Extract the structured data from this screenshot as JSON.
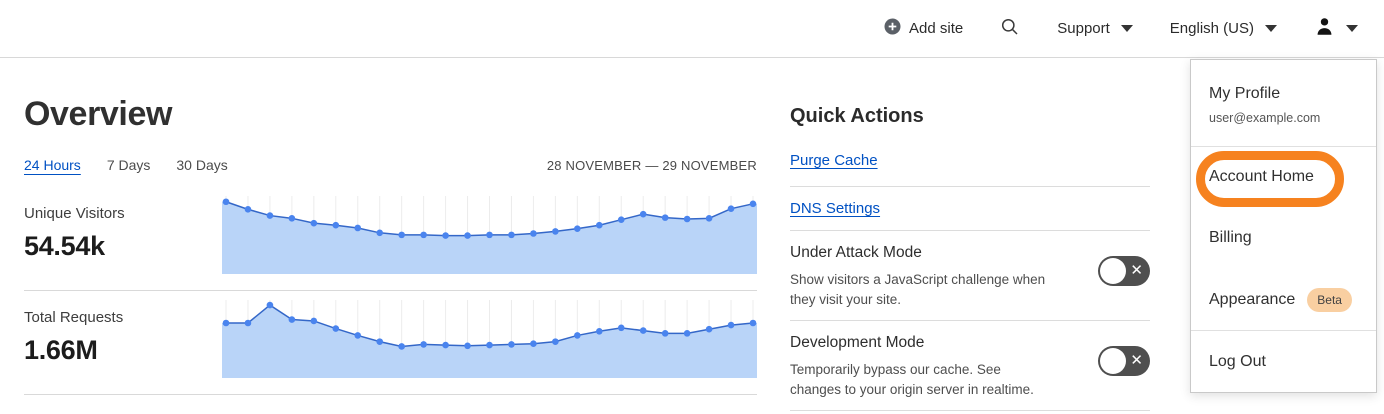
{
  "topbar": {
    "add_site_label": "Add site",
    "support_label": "Support",
    "language_label": "English (US)"
  },
  "overview": {
    "title": "Overview",
    "tabs": [
      {
        "label": "24 Hours",
        "active": true
      },
      {
        "label": "7 Days",
        "active": false
      },
      {
        "label": "30 Days",
        "active": false
      }
    ],
    "date_range": "28 NOVEMBER — 29 NOVEMBER",
    "metrics": [
      {
        "label": "Unique Visitors",
        "value": "54.54k"
      },
      {
        "label": "Total Requests",
        "value": "1.66M"
      }
    ]
  },
  "chart_data": [
    {
      "type": "area",
      "title": "Unique Visitors",
      "total_shown": "54.54k",
      "x_axis": "time across 24 hours, 28 November — 29 November (no tick labels shown)",
      "y_axis": "unlabeled; values are relative heights 0-1 read from the plot",
      "grid": "light vertical gridline at each data point",
      "legend": "none",
      "values": [
        0.96,
        0.85,
        0.76,
        0.72,
        0.65,
        0.62,
        0.58,
        0.51,
        0.48,
        0.48,
        0.47,
        0.47,
        0.48,
        0.48,
        0.5,
        0.53,
        0.57,
        0.62,
        0.7,
        0.78,
        0.73,
        0.71,
        0.72,
        0.86,
        0.93
      ]
    },
    {
      "type": "area",
      "title": "Total Requests",
      "total_shown": "1.66M",
      "x_axis": "time across 24 hours, 28 November — 29 November (no tick labels shown)",
      "y_axis": "unlabeled; values are relative heights 0-1 read from the plot",
      "grid": "light vertical gridline at each data point",
      "legend": "none",
      "values": [
        0.71,
        0.71,
        0.97,
        0.76,
        0.74,
        0.63,
        0.53,
        0.44,
        0.37,
        0.4,
        0.39,
        0.38,
        0.39,
        0.4,
        0.41,
        0.44,
        0.53,
        0.59,
        0.64,
        0.6,
        0.56,
        0.56,
        0.62,
        0.68,
        0.71
      ]
    }
  ],
  "quick_actions": {
    "title": "Quick Actions",
    "links": [
      {
        "label": "Purge Cache"
      },
      {
        "label": "DNS Settings"
      }
    ],
    "toggles": [
      {
        "title": "Under Attack Mode",
        "description": "Show visitors a JavaScript challenge when they visit your site.",
        "state": "off"
      },
      {
        "title": "Development Mode",
        "description": "Temporarily bypass our cache. See changes to your origin server in realtime.",
        "state": "off"
      }
    ]
  },
  "account_menu": {
    "profile_label": "My Profile",
    "profile_email": "user@example.com",
    "item_account_home": "Account Home",
    "item_billing": "Billing",
    "item_appearance": "Appearance",
    "appearance_badge": "Beta",
    "item_logout": "Log Out",
    "annotation": {
      "target": "Account Home",
      "shape": "orange rounded-rectangle outline",
      "color": "#F6821F"
    }
  },
  "colors": {
    "link_blue": "#0051C3",
    "chart_fill": "#B9D4F8",
    "chart_line": "#3467C8",
    "chart_point": "#4A84EE",
    "chart_grid": "#ECECEC",
    "annotation_orange": "#F6821F",
    "beta_badge_bg": "#F9CFA1",
    "toggle_bg": "#4F4F4F"
  }
}
